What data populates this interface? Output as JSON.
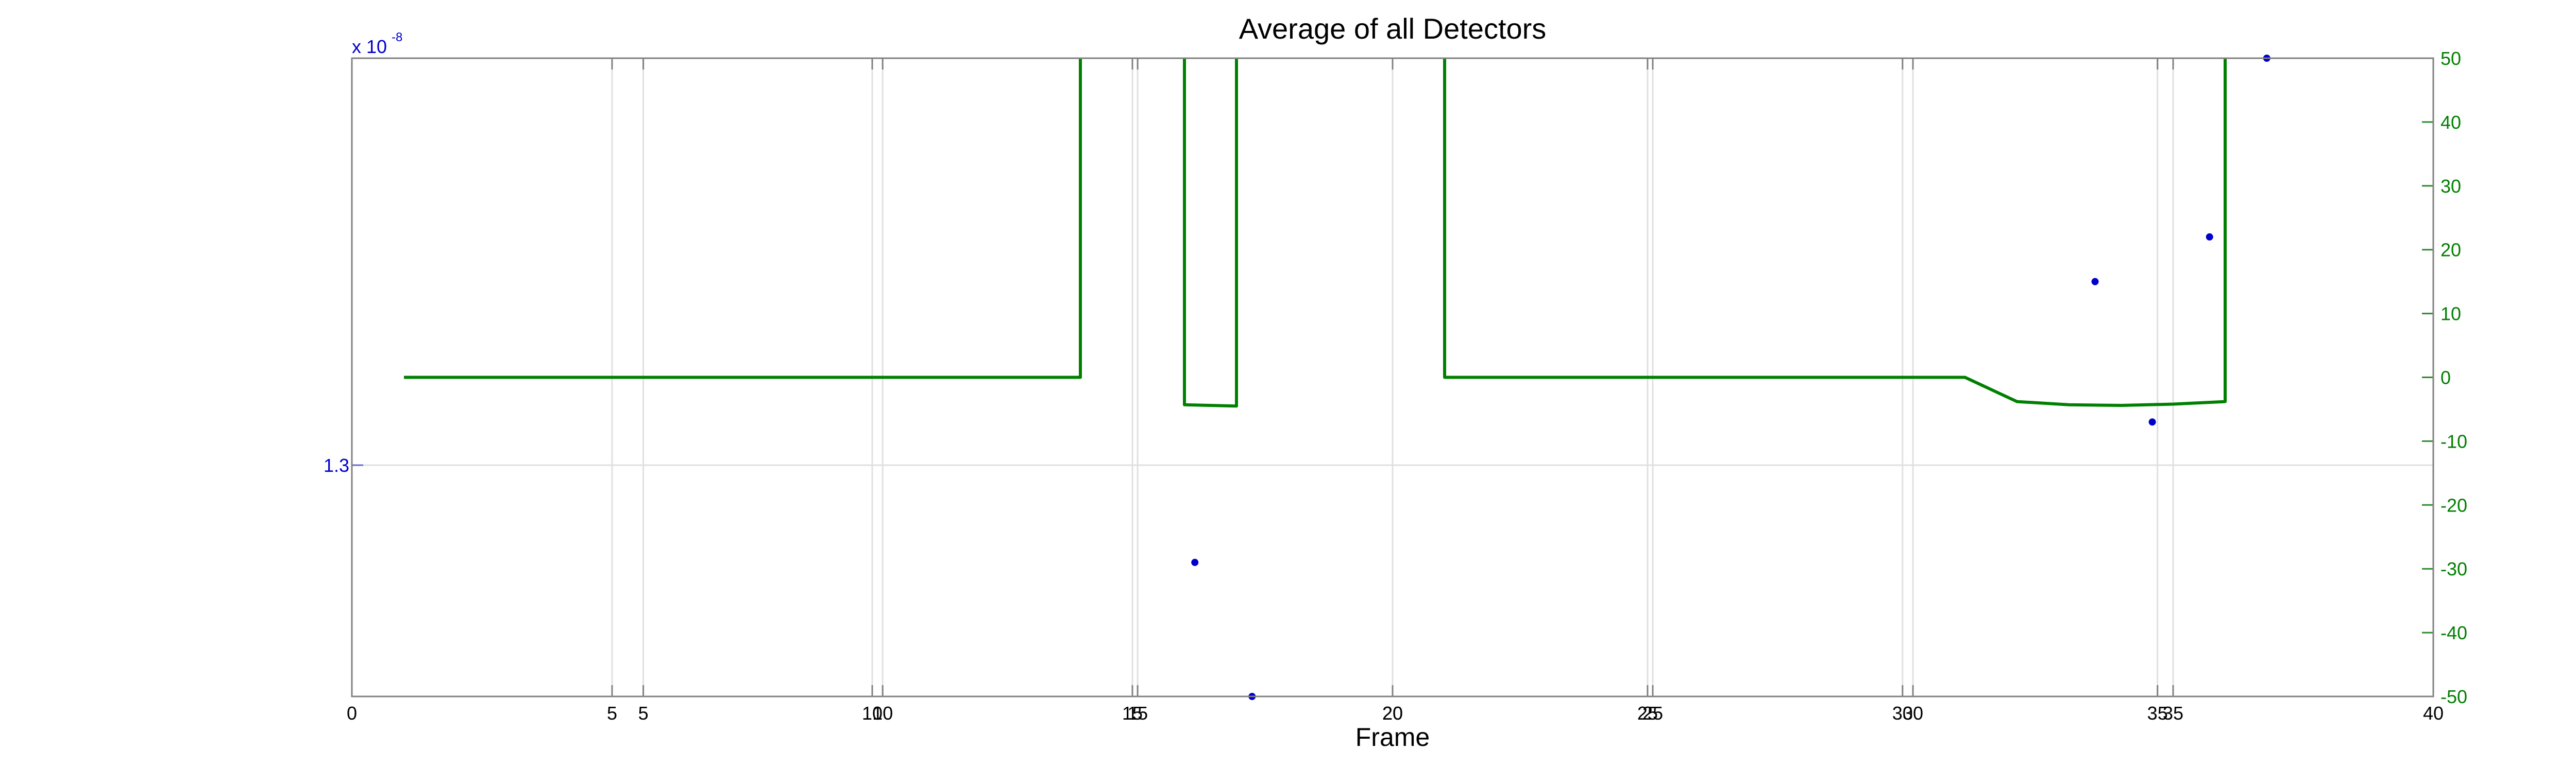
{
  "chart_data": {
    "type": "line",
    "title": "Average of all Detectors",
    "xlabel": "Frame",
    "xlim": [
      0,
      40
    ],
    "x_ticks": [
      "0",
      "5",
      "10",
      "15",
      "20",
      "25",
      "30",
      "35",
      "40"
    ],
    "x_ticks_secondary": [
      {
        "x": 5.6,
        "label": "5"
      },
      {
        "x": 10.2,
        "label": "10"
      },
      {
        "x": 15.1,
        "label": "15"
      },
      {
        "x": 20.0,
        "label": "20"
      },
      {
        "x": 24.9,
        "label": "25"
      },
      {
        "x": 29.8,
        "label": "30"
      },
      {
        "x": 34.7,
        "label": "35"
      }
    ],
    "left_axis": {
      "multiplier": "x 10",
      "exponent": "-8",
      "tick_label": "1.3",
      "color": "#0000cc"
    },
    "right_axis": {
      "ylim": [
        -50,
        50
      ],
      "ticks": [
        "-50",
        "-40",
        "-30",
        "-20",
        "-10",
        "0",
        "10",
        "20",
        "30",
        "40",
        "50"
      ],
      "color": "#008000"
    },
    "series": [
      {
        "color": "#008000",
        "style": "line",
        "segments": [
          [
            [
              1,
              0
            ],
            [
              14,
              0
            ],
            [
              14,
              50
            ]
          ],
          [
            [
              16,
              50
            ],
            [
              16,
              -4.3
            ],
            [
              17,
              -4.5
            ],
            [
              17,
              50
            ]
          ],
          [
            [
              21,
              50
            ],
            [
              21,
              0
            ],
            [
              31,
              0
            ],
            [
              32,
              -3.8
            ],
            [
              33,
              -4.3
            ],
            [
              34,
              -4.4
            ],
            [
              35,
              -4.2
            ],
            [
              36,
              -3.8
            ],
            [
              36,
              50
            ]
          ]
        ]
      },
      {
        "color": "#0000cc",
        "style": "markers",
        "points": [
          [
            16.2,
            -29
          ],
          [
            17.3,
            -50
          ],
          [
            33.5,
            15
          ],
          [
            34.6,
            -7
          ],
          [
            35.7,
            22
          ],
          [
            36.8,
            50
          ]
        ]
      }
    ]
  }
}
